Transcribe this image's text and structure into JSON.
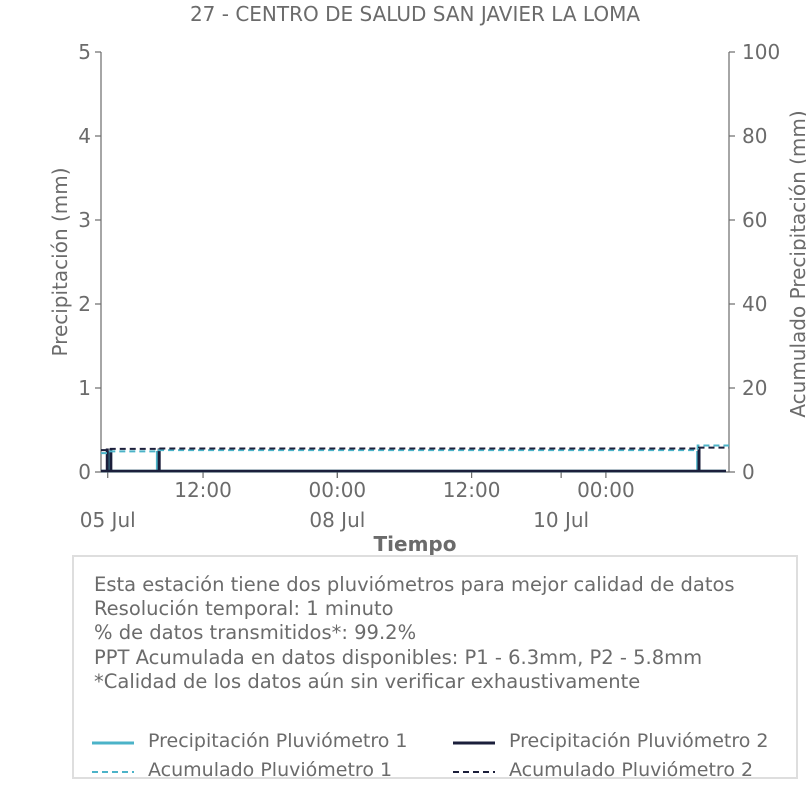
{
  "chart_data": {
    "type": "line",
    "title": "27 - CENTRO DE SALUD SAN JAVIER LA LOMA",
    "xlabel": "Tiempo",
    "ylabel_left": "Precipitación (mm)",
    "ylabel_right": "Acumulado Precipitación (mm)",
    "ylim_left": [
      0,
      5
    ],
    "ylim_right": [
      0,
      100
    ],
    "yticks_left": [
      "0",
      "1",
      "2",
      "3",
      "4",
      "5"
    ],
    "yticks_right": [
      "0",
      "20",
      "40",
      "60",
      "80",
      "100"
    ],
    "xlim_hours": [
      -2.8,
      137.5
    ],
    "x_major_ticks": [
      {
        "hour": 20,
        "label": "12:00"
      },
      {
        "hour": 50,
        "label": "00:00"
      },
      {
        "hour": 80,
        "label": "12:00"
      },
      {
        "hour": 110,
        "label": "00:00"
      }
    ],
    "x_date_labels": [
      {
        "hour": -1.3,
        "label": "05 Jul"
      },
      {
        "hour": 50,
        "label": "08 Jul"
      },
      {
        "hour": 100,
        "label": "10 Jul"
      }
    ],
    "series": [
      {
        "name": "Precipitación Pluviómetro 1",
        "axis": "left",
        "style": "solid",
        "color": "#4bb3c8",
        "spikes": [
          {
            "x": -1.2,
            "y": 0.25
          },
          {
            "x": 9.8,
            "y": 0.25
          },
          {
            "x": 130.5,
            "y": 0.25
          }
        ]
      },
      {
        "name": "Precipitación Pluviómetro 2",
        "axis": "left",
        "style": "solid",
        "color": "#1b1f3b",
        "spikes": [
          {
            "x": -1.4,
            "y": 0.28
          },
          {
            "x": -0.6,
            "y": 0.28
          },
          {
            "x": 10.2,
            "y": 0.28
          },
          {
            "x": 130.8,
            "y": 0.28
          }
        ]
      },
      {
        "name": "Acumulado Pluviómetro 1",
        "axis": "right",
        "style": "dashed",
        "color": "#4bb3c8",
        "steps": [
          {
            "x": -2.8,
            "y": 4.5
          },
          {
            "x": -1.2,
            "y": 4.9
          },
          {
            "x": 9.8,
            "y": 5.2
          },
          {
            "x": 130.5,
            "y": 6.3
          },
          {
            "x": 137.5,
            "y": 6.3
          }
        ]
      },
      {
        "name": "Acumulado Pluviómetro 2",
        "axis": "right",
        "style": "dashed",
        "color": "#1b1f3b",
        "steps": [
          {
            "x": -2.8,
            "y": 5.2
          },
          {
            "x": -0.6,
            "y": 5.5
          },
          {
            "x": 10.2,
            "y": 5.6
          },
          {
            "x": 130.8,
            "y": 5.8
          },
          {
            "x": 137.5,
            "y": 5.8
          }
        ]
      }
    ]
  },
  "info": {
    "lines": [
      "Esta estación tiene dos pluviómetros para mejor calidad de datos",
      "Resolución temporal: 1 minuto",
      "% de datos transmitidos*: 99.2%",
      "PPT Acumulada en datos disponibles: P1 - 6.3mm, P2 - 5.8mm",
      "*Calidad de los datos aún sin verificar exhaustivamente"
    ],
    "legend": [
      {
        "label": "Precipitación Pluviómetro 1",
        "color": "#4bb3c8",
        "style": "solid"
      },
      {
        "label": "Precipitación Pluviómetro 2",
        "color": "#1b1f3b",
        "style": "solid"
      },
      {
        "label": "Acumulado Pluviómetro 1",
        "color": "#4bb3c8",
        "style": "dashed"
      },
      {
        "label": "Acumulado Pluviómetro 2",
        "color": "#1b1f3b",
        "style": "dashed"
      }
    ]
  }
}
